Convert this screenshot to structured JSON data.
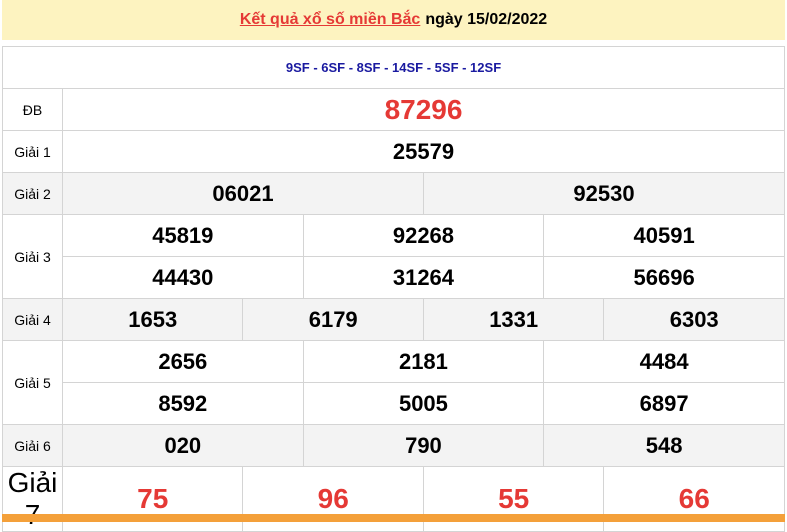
{
  "header": {
    "link_text": "Kết quả xổ số miền Bắc",
    "date_text": "ngày 15/02/2022"
  },
  "codes": "9SF - 6SF - 8SF - 14SF - 5SF - 12SF",
  "prizes": {
    "db": {
      "label": "ĐB",
      "values": [
        "87296"
      ]
    },
    "g1": {
      "label": "Giải 1",
      "values": [
        "25579"
      ]
    },
    "g2": {
      "label": "Giải 2",
      "values": [
        "06021",
        "92530"
      ]
    },
    "g3": {
      "label": "Giải 3",
      "values": [
        "45819",
        "92268",
        "40591",
        "44430",
        "31264",
        "56696"
      ]
    },
    "g4": {
      "label": "Giải 4",
      "values": [
        "1653",
        "6179",
        "1331",
        "6303"
      ]
    },
    "g5": {
      "label": "Giải 5",
      "values": [
        "2656",
        "2181",
        "4484",
        "8592",
        "5005",
        "6897"
      ]
    },
    "g6": {
      "label": "Giải 6",
      "values": [
        "020",
        "790",
        "548"
      ]
    },
    "g7": {
      "label": "Giải 7",
      "values": [
        "75",
        "96",
        "55",
        "66"
      ]
    }
  },
  "colors": {
    "accent_red": "#e53935",
    "header_bg": "#fdf3c0",
    "code_blue": "#1a1aa0",
    "footer_orange": "#f4a03a"
  }
}
